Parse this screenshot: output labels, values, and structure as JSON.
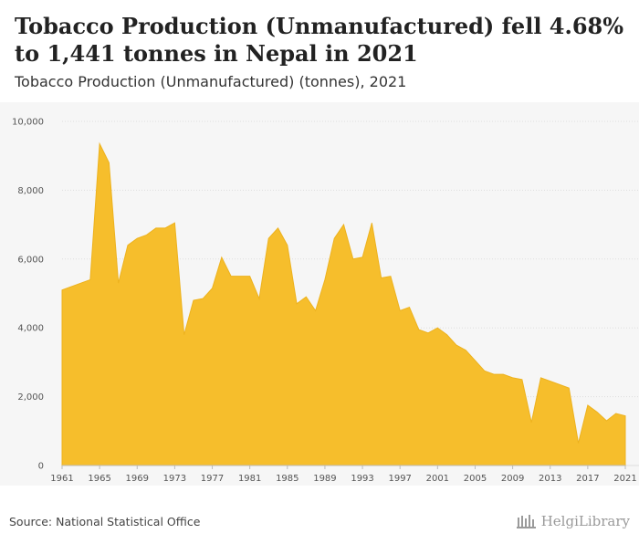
{
  "header": {
    "title": "Tobacco Production (Unmanufactured) fell 4.68% to 1,441 tonnes in Nepal in 2021",
    "subtitle": "Tobacco Production (Unmanufactured) (tonnes), 2021"
  },
  "footer": {
    "source": "Source: National Statistical Office",
    "brand": "HelgiLibrary"
  },
  "colors": {
    "area_fill": "#F6BE2C",
    "area_stroke": "#EDB21E",
    "plot_background": "#F6F6F6",
    "grid": "#DDDDDD"
  },
  "chart_data": {
    "type": "area",
    "title": "Tobacco Production (Unmanufactured) (tonnes), 2021",
    "xlabel": "",
    "ylabel": "",
    "ylim": [
      0,
      10000
    ],
    "yticks": [
      0,
      2000,
      4000,
      6000,
      8000,
      10000
    ],
    "ytick_labels": [
      "0",
      "2,000",
      "4,000",
      "6,000",
      "8,000",
      "10,000"
    ],
    "xticks": [
      1961,
      1965,
      1969,
      1973,
      1977,
      1981,
      1985,
      1989,
      1993,
      1997,
      2001,
      2005,
      2009,
      2013,
      2017,
      2021
    ],
    "grid": "horizontal",
    "series": [
      {
        "x": [
          1961,
          1962,
          1963,
          1964,
          1965,
          1966,
          1967,
          1968,
          1969,
          1970,
          1971,
          1972,
          1973,
          1974,
          1975,
          1976,
          1977,
          1978,
          1979,
          1980,
          1981,
          1982,
          1983,
          1984,
          1985,
          1986,
          1987,
          1988,
          1989,
          1990,
          1991,
          1992,
          1993,
          1994,
          1995,
          1996,
          1997,
          1998,
          1999,
          2000,
          2001,
          2002,
          2003,
          2004,
          2005,
          2006,
          2007,
          2008,
          2009,
          2010,
          2011,
          2012,
          2013,
          2014,
          2015,
          2016,
          2017,
          2018,
          2019,
          2020,
          2021
        ],
        "values": [
          5100,
          5200,
          5300,
          5400,
          9350,
          8800,
          5300,
          6400,
          6600,
          6700,
          6900,
          6900,
          7050,
          3800,
          4800,
          4850,
          5150,
          6050,
          5500,
          5500,
          5500,
          4850,
          6600,
          6900,
          6400,
          4700,
          4900,
          4500,
          5400,
          6600,
          7000,
          6000,
          6050,
          7050,
          5450,
          5500,
          4500,
          4600,
          3950,
          3850,
          4000,
          3800,
          3500,
          3350,
          3050,
          2750,
          2650,
          2650,
          2550,
          2500,
          1250,
          2550,
          2450,
          2350,
          2250,
          650,
          1750,
          1550,
          1300,
          1511,
          1441
        ]
      }
    ]
  }
}
